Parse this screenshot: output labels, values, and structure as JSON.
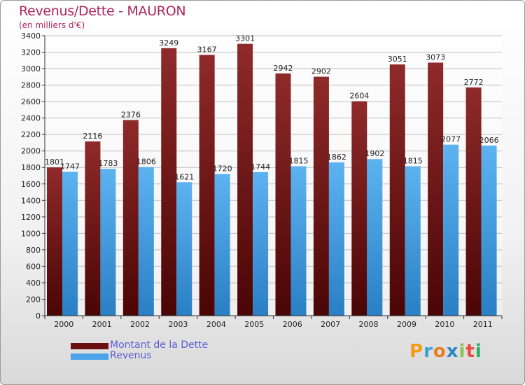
{
  "header": {
    "title": "Revenus/Dette - MAURON",
    "subtitle": "(en milliers d'€)"
  },
  "chart_data": {
    "type": "bar",
    "title": "Revenus/Dette - MAURON",
    "ylabel": "(en milliers d'€)",
    "categories": [
      "2000",
      "2001",
      "2002",
      "2003",
      "2004",
      "2005",
      "2006",
      "2007",
      "2008",
      "2009",
      "2010",
      "2011"
    ],
    "series": [
      {
        "name": "Montant de la Dette",
        "color": "#8a1f1f",
        "values": [
          1801,
          2116,
          2376,
          3249,
          3167,
          3301,
          2942,
          2902,
          2604,
          3051,
          3073,
          2772
        ]
      },
      {
        "name": "Revenus",
        "color": "#4aa3e8",
        "values": [
          1747,
          1783,
          1806,
          1621,
          1720,
          1744,
          1815,
          1862,
          1902,
          1815,
          2077,
          2066
        ]
      }
    ],
    "ylim": [
      0,
      3400
    ],
    "yticks": [
      0,
      200,
      400,
      600,
      800,
      1000,
      1200,
      1400,
      1600,
      1800,
      2000,
      2200,
      2400,
      2600,
      2800,
      3000,
      3200,
      3400
    ],
    "grid": true,
    "legend_position": "bottom-left"
  },
  "legend": {
    "items": [
      {
        "label": "Montant de la Dette",
        "color": "#6b1010"
      },
      {
        "label": "Revenus",
        "color": "#4aa3e8"
      }
    ]
  },
  "logo": {
    "letters": [
      {
        "ch": "P",
        "color": "#f39c12"
      },
      {
        "ch": "r",
        "color": "#3aa0d8"
      },
      {
        "ch": "o",
        "color": "#e67e22"
      },
      {
        "ch": "x",
        "color": "#2e86c1"
      },
      {
        "ch": "i",
        "color": "#8bc34a"
      },
      {
        "ch": "t",
        "color": "#e74c3c"
      },
      {
        "ch": "i",
        "color": "#27ae60"
      }
    ]
  }
}
